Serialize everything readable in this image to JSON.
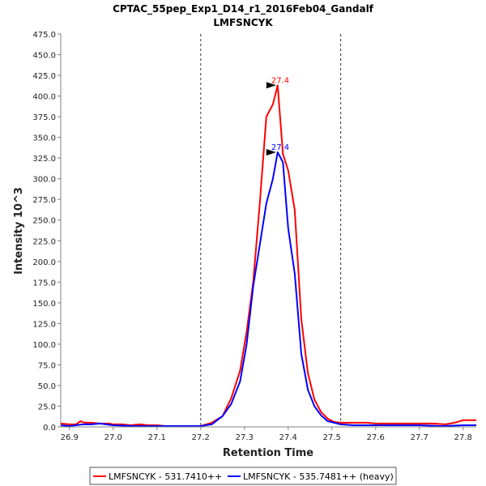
{
  "chart_data": {
    "type": "line",
    "title": "CPTAC_55pep_Exp1_D14_r1_2016Feb04_Gandalf",
    "subtitle": "LMFSNCYK",
    "xlabel": "Retention Time",
    "ylabel": "Intensity 10^3",
    "xlim": [
      26.88,
      27.83
    ],
    "ylim": [
      0,
      475
    ],
    "xticks": [
      26.9,
      27.0,
      27.1,
      27.2,
      27.3,
      27.4,
      27.5,
      27.6,
      27.7,
      27.8
    ],
    "xtick_labels": [
      "26.9",
      "27.0",
      "27.1",
      "27.2",
      "27.3",
      "27.4",
      "27.5",
      "27.6",
      "27.7",
      "27.8"
    ],
    "yticks": [
      0,
      25,
      50,
      75,
      100,
      125,
      150,
      175,
      200,
      225,
      250,
      275,
      300,
      325,
      350,
      375,
      400,
      425,
      450,
      475
    ],
    "ytick_labels": [
      "0.0",
      "25.0",
      "50.0",
      "75.0",
      "100.0",
      "125.0",
      "150.0",
      "175.0",
      "200.0",
      "225.0",
      "250.0",
      "275.0",
      "300.0",
      "325.0",
      "350.0",
      "375.0",
      "400.0",
      "425.0",
      "450.0",
      "475.0"
    ],
    "vlines": [
      27.2,
      27.52
    ],
    "series": [
      {
        "name": "LMFSNCYK - 531.7410++",
        "color": "#ff0000",
        "peak_label": "27.4",
        "peak": [
          27.376,
          413
        ],
        "x": [
          26.88,
          26.9,
          26.915,
          26.925,
          26.935,
          26.95,
          26.97,
          26.99,
          27.0,
          27.02,
          27.04,
          27.06,
          27.08,
          27.1,
          27.12,
          27.14,
          27.16,
          27.18,
          27.2,
          27.225,
          27.25,
          27.27,
          27.29,
          27.305,
          27.32,
          27.335,
          27.35,
          27.365,
          27.376,
          27.388,
          27.4,
          27.415,
          27.43,
          27.445,
          27.46,
          27.475,
          27.49,
          27.505,
          27.52,
          27.55,
          27.58,
          27.6,
          27.65,
          27.7,
          27.73,
          27.76,
          27.78,
          27.8,
          27.83
        ],
        "y": [
          4,
          3,
          3,
          7,
          5,
          5,
          4,
          4,
          3,
          3,
          2,
          3,
          2,
          2,
          1,
          1,
          1,
          1,
          1,
          5,
          13,
          35,
          68,
          115,
          175,
          270,
          375,
          390,
          413,
          330,
          310,
          262,
          130,
          65,
          33,
          18,
          10,
          6,
          5,
          5,
          5,
          4,
          4,
          4,
          4,
          3,
          5,
          8,
          8
        ]
      },
      {
        "name": "LMFSNCYK - 535.7481++ (heavy)",
        "color": "#0000ff",
        "peak_label": "27.4",
        "peak": [
          27.376,
          332
        ],
        "x": [
          26.88,
          26.9,
          26.93,
          26.95,
          26.97,
          27.0,
          27.05,
          27.1,
          27.15,
          27.2,
          27.225,
          27.25,
          27.27,
          27.29,
          27.305,
          27.32,
          27.335,
          27.35,
          27.365,
          27.376,
          27.388,
          27.4,
          27.415,
          27.43,
          27.445,
          27.46,
          27.475,
          27.49,
          27.505,
          27.52,
          27.55,
          27.6,
          27.65,
          27.7,
          27.75,
          27.8,
          27.83
        ],
        "y": [
          2,
          1,
          3,
          3,
          4,
          2,
          1,
          1,
          1,
          1,
          3,
          13,
          28,
          55,
          100,
          170,
          220,
          270,
          300,
          332,
          320,
          240,
          185,
          88,
          45,
          25,
          14,
          7,
          5,
          3,
          2,
          2,
          2,
          2,
          1,
          2,
          2
        ]
      }
    ],
    "legend": {
      "placement": "bottom-center",
      "labels": [
        "LMFSNCYK - 531.7410++",
        "LMFSNCYK - 535.7481++ (heavy)"
      ]
    },
    "grid": false
  }
}
